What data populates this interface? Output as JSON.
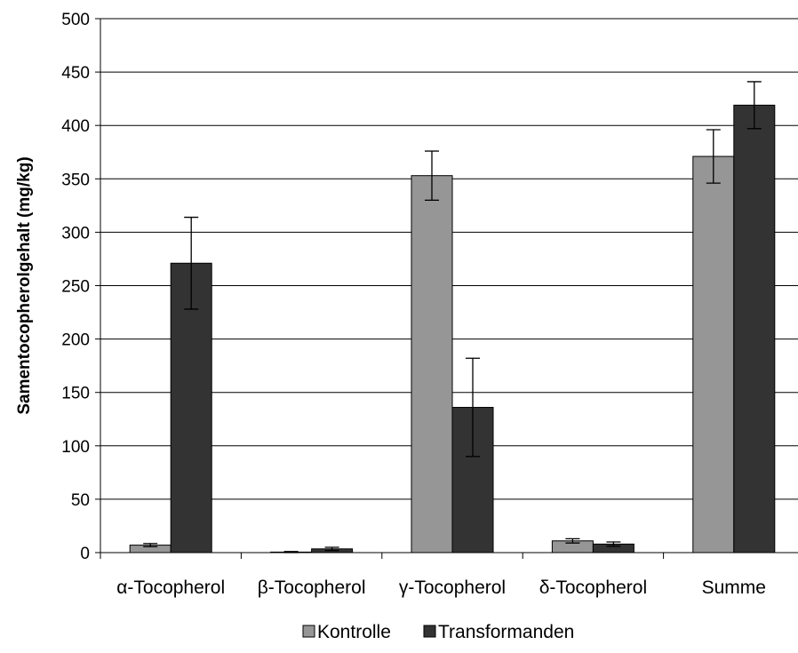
{
  "chart_data": {
    "type": "bar",
    "title": "",
    "xlabel": "",
    "ylabel": "Samentocopherolgehalt (mg/kg)",
    "ylim": [
      0,
      500
    ],
    "yticks": [
      0,
      50,
      100,
      150,
      200,
      250,
      300,
      350,
      400,
      450,
      500
    ],
    "grid": true,
    "legend_position": "bottom",
    "categories": [
      "α-Tocopherol",
      "β-Tocopherol",
      "γ-Tocopherol",
      "δ-Tocopherol",
      "Summe"
    ],
    "series": [
      {
        "name": "Kontrolle",
        "color": "#969696",
        "values": [
          7,
          0.5,
          353,
          11,
          371
        ],
        "errors": [
          1.5,
          0.5,
          23,
          2,
          25
        ]
      },
      {
        "name": "Transformanden",
        "color": "#333333",
        "values": [
          271,
          3.5,
          136,
          8,
          419
        ],
        "errors": [
          43,
          1.5,
          46,
          2,
          22
        ]
      }
    ]
  }
}
